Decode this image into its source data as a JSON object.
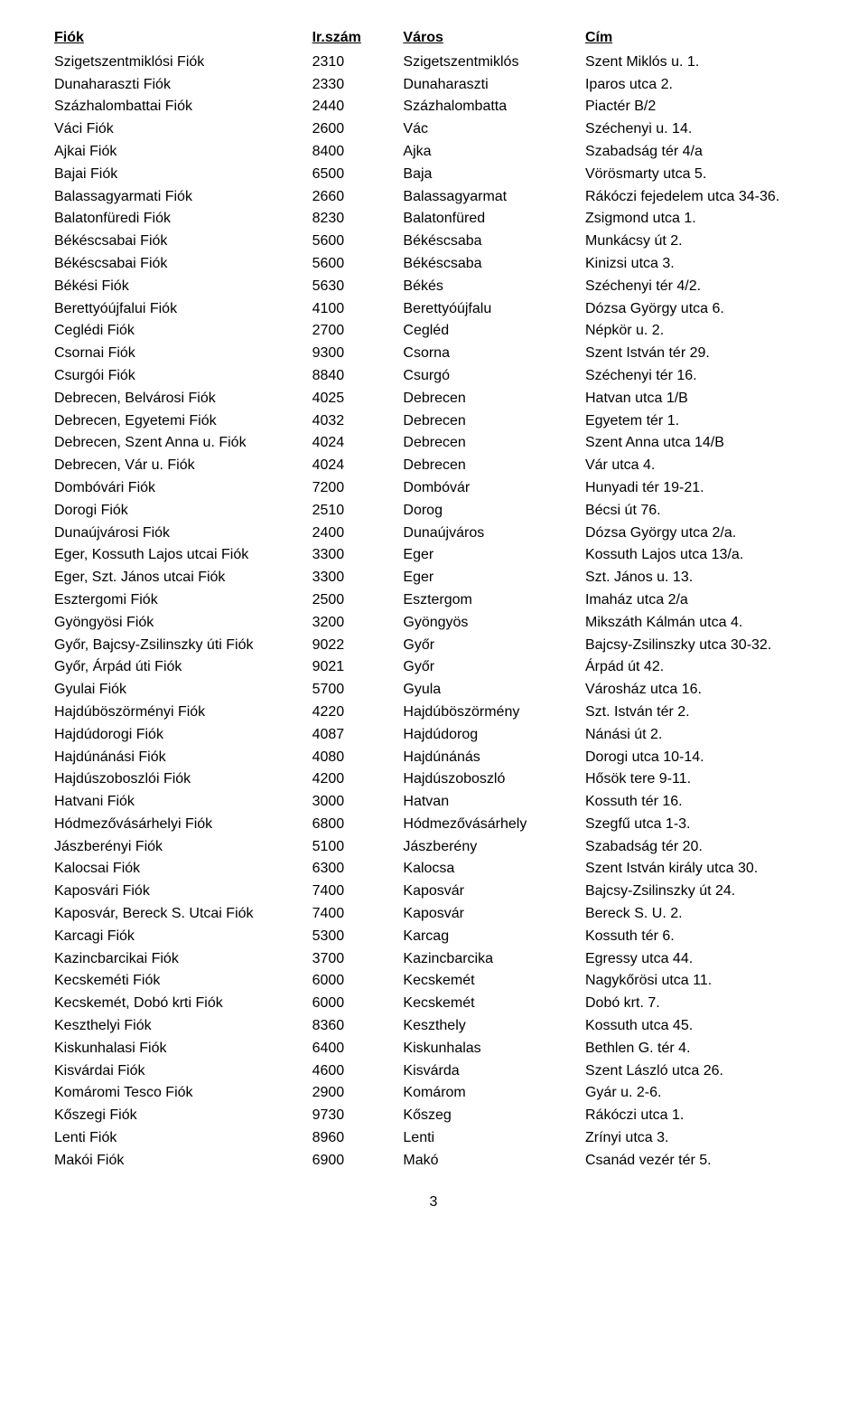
{
  "columns": [
    "Fiók",
    "Ir.szám",
    "Város",
    "Cím"
  ],
  "rows": [
    [
      "Szigetszentmiklósi Fiók",
      "2310",
      "Szigetszentmiklós",
      "Szent Miklós u. 1."
    ],
    [
      "Dunaharaszti Fiók",
      "2330",
      "Dunaharaszti",
      "Iparos utca 2."
    ],
    [
      "Százhalombattai Fiók",
      "2440",
      "Százhalombatta",
      "Piactér B/2"
    ],
    [
      "Váci Fiók",
      "2600",
      "Vác",
      "Széchenyi u. 14."
    ],
    [
      "Ajkai Fiók",
      "8400",
      "Ajka",
      "Szabadság tér 4/a"
    ],
    [
      "Bajai Fiók",
      "6500",
      "Baja",
      "Vörösmarty utca 5."
    ],
    [
      "Balassagyarmati Fiók",
      "2660",
      "Balassagyarmat",
      "Rákóczi fejedelem utca 34-36."
    ],
    [
      "Balatonfüredi Fiók",
      "8230",
      "Balatonfüred",
      "Zsigmond utca 1."
    ],
    [
      "Békéscsabai Fiók",
      "5600",
      "Békéscsaba",
      "Munkácsy út 2."
    ],
    [
      "Békéscsabai Fiók",
      "5600",
      "Békéscsaba",
      "Kinizsi utca 3."
    ],
    [
      "Békési Fiók",
      "5630",
      "Békés",
      "Széchenyi tér 4/2."
    ],
    [
      "Berettyóújfalui Fiók",
      "4100",
      "Berettyóújfalu",
      "Dózsa György utca 6."
    ],
    [
      "Ceglédi Fiók",
      "2700",
      "Cegléd",
      "Népkör u. 2."
    ],
    [
      "Csornai Fiók",
      "9300",
      "Csorna",
      "Szent István tér 29."
    ],
    [
      "Csurgói Fiók",
      "8840",
      "Csurgó",
      "Széchenyi tér 16."
    ],
    [
      "Debrecen, Belvárosi Fiók",
      "4025",
      "Debrecen",
      "Hatvan utca 1/B"
    ],
    [
      "Debrecen, Egyetemi Fiók",
      "4032",
      "Debrecen",
      "Egyetem tér 1."
    ],
    [
      "Debrecen, Szent Anna u. Fiók",
      "4024",
      "Debrecen",
      "Szent Anna utca 14/B"
    ],
    [
      "Debrecen, Vár u. Fiók",
      "4024",
      "Debrecen",
      "Vár utca 4."
    ],
    [
      "Dombóvári Fiók",
      "7200",
      "Dombóvár",
      "Hunyadi tér 19-21."
    ],
    [
      "Dorogi Fiók",
      "2510",
      "Dorog",
      "Bécsi út 76."
    ],
    [
      "Dunaújvárosi Fiók",
      "2400",
      "Dunaújváros",
      "Dózsa György utca 2/a."
    ],
    [
      "Eger, Kossuth Lajos utcai Fiók",
      "3300",
      "Eger",
      "Kossuth Lajos utca 13/a."
    ],
    [
      "Eger, Szt. János utcai Fiók",
      "3300",
      "Eger",
      "Szt. János u. 13."
    ],
    [
      "Esztergomi Fiók",
      "2500",
      "Esztergom",
      "Imaház utca 2/a"
    ],
    [
      "Gyöngyösi Fiók",
      "3200",
      "Gyöngyös",
      "Mikszáth Kálmán utca 4."
    ],
    [
      "Győr, Bajcsy-Zsilinszky úti Fiók",
      "9022",
      "Győr",
      "Bajcsy-Zsilinszky utca 30-32."
    ],
    [
      "Győr, Árpád úti Fiók",
      "9021",
      "Győr",
      "Árpád út 42."
    ],
    [
      "Gyulai Fiók",
      "5700",
      "Gyula",
      "Városház utca 16."
    ],
    [
      "Hajdúböszörményi Fiók",
      "4220",
      "Hajdúböszörmény",
      "Szt. István tér 2."
    ],
    [
      "Hajdúdorogi Fiók",
      "4087",
      "Hajdúdorog",
      "Nánási út 2."
    ],
    [
      "Hajdúnánási Fiók",
      "4080",
      "Hajdúnánás",
      "Dorogi utca 10-14."
    ],
    [
      "Hajdúszoboszlói Fiók",
      "4200",
      "Hajdúszoboszló",
      "Hősök tere 9-11."
    ],
    [
      "Hatvani Fiók",
      "3000",
      "Hatvan",
      "Kossuth tér 16."
    ],
    [
      "Hódmezővásárhelyi Fiók",
      "6800",
      "Hódmezővásárhely",
      "Szegfű utca 1-3."
    ],
    [
      "Jászberényi Fiók",
      "5100",
      "Jászberény",
      "Szabadság tér 20."
    ],
    [
      "Kalocsai Fiók",
      "6300",
      "Kalocsa",
      "Szent István király utca 30."
    ],
    [
      "Kaposvári Fiók",
      "7400",
      "Kaposvár",
      "Bajcsy-Zsilinszky út 24."
    ],
    [
      "Kaposvár, Bereck S. Utcai Fiók",
      "7400",
      "Kaposvár",
      "Bereck S. U. 2."
    ],
    [
      "Karcagi Fiók",
      "5300",
      "Karcag",
      "Kossuth tér 6."
    ],
    [
      "Kazincbarcikai Fiók",
      "3700",
      "Kazincbarcika",
      "Egressy utca 44."
    ],
    [
      "Kecskeméti Fiók",
      "6000",
      "Kecskemét",
      "Nagykőrösi utca 11."
    ],
    [
      "Kecskemét, Dobó krti Fiók",
      "6000",
      "Kecskemét",
      "Dobó krt. 7."
    ],
    [
      "Keszthelyi Fiók",
      "8360",
      "Keszthely",
      "Kossuth utca 45."
    ],
    [
      "Kiskunhalasi Fiók",
      "6400",
      "Kiskunhalas",
      "Bethlen G. tér 4."
    ],
    [
      "Kisvárdai Fiók",
      "4600",
      "Kisvárda",
      "Szent László utca 26."
    ],
    [
      "Komáromi Tesco Fiók",
      "2900",
      "Komárom",
      "Gyár u. 2-6."
    ],
    [
      "Kőszegi Fiók",
      "9730",
      "Kőszeg",
      "Rákóczi utca 1."
    ],
    [
      "Lenti Fiók",
      "8960",
      "Lenti",
      "Zrínyi utca 3."
    ],
    [
      "Makói Fiók",
      "6900",
      "Makó",
      "Csanád vezér tér 5."
    ]
  ],
  "page_number": "3"
}
